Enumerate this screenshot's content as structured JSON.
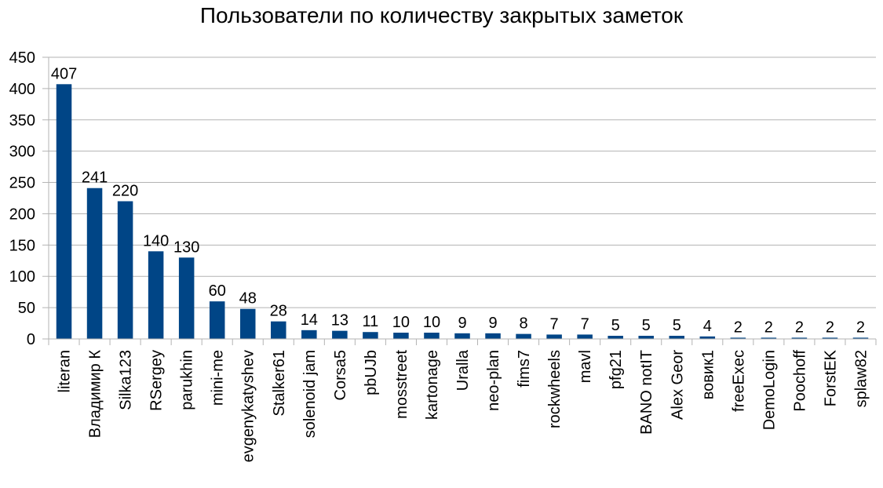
{
  "chart_data": {
    "type": "bar",
    "title": "Пользователи по количеству закрытых заметок",
    "xlabel": "",
    "ylabel": "",
    "ylim": [
      0,
      450
    ],
    "yticks": [
      0,
      50,
      100,
      150,
      200,
      250,
      300,
      350,
      400,
      450
    ],
    "grid": true,
    "legend": "none",
    "bar_color": "#004586",
    "categories": [
      "literan",
      "Владимир К",
      "Silka123",
      "RSergey",
      "parukhin",
      "mini-me",
      "evgenykatyshev",
      "Stalker61",
      "solenoid jam",
      "Corsa5",
      "pbUJb",
      "mosstreet",
      "kartonage",
      "Uralla",
      "neo-plan",
      "fims7",
      "rockwheels",
      "mavl",
      "pfg21",
      "BANO notIT",
      "Alex Geor",
      "вовик1",
      "freeExec",
      "DemoLogin",
      "Poochoff",
      "ForstEK",
      "splaw82"
    ],
    "values": [
      407,
      241,
      220,
      140,
      130,
      60,
      48,
      28,
      14,
      13,
      11,
      10,
      10,
      9,
      9,
      8,
      7,
      7,
      5,
      5,
      5,
      4,
      2,
      2,
      2,
      2,
      2
    ]
  }
}
